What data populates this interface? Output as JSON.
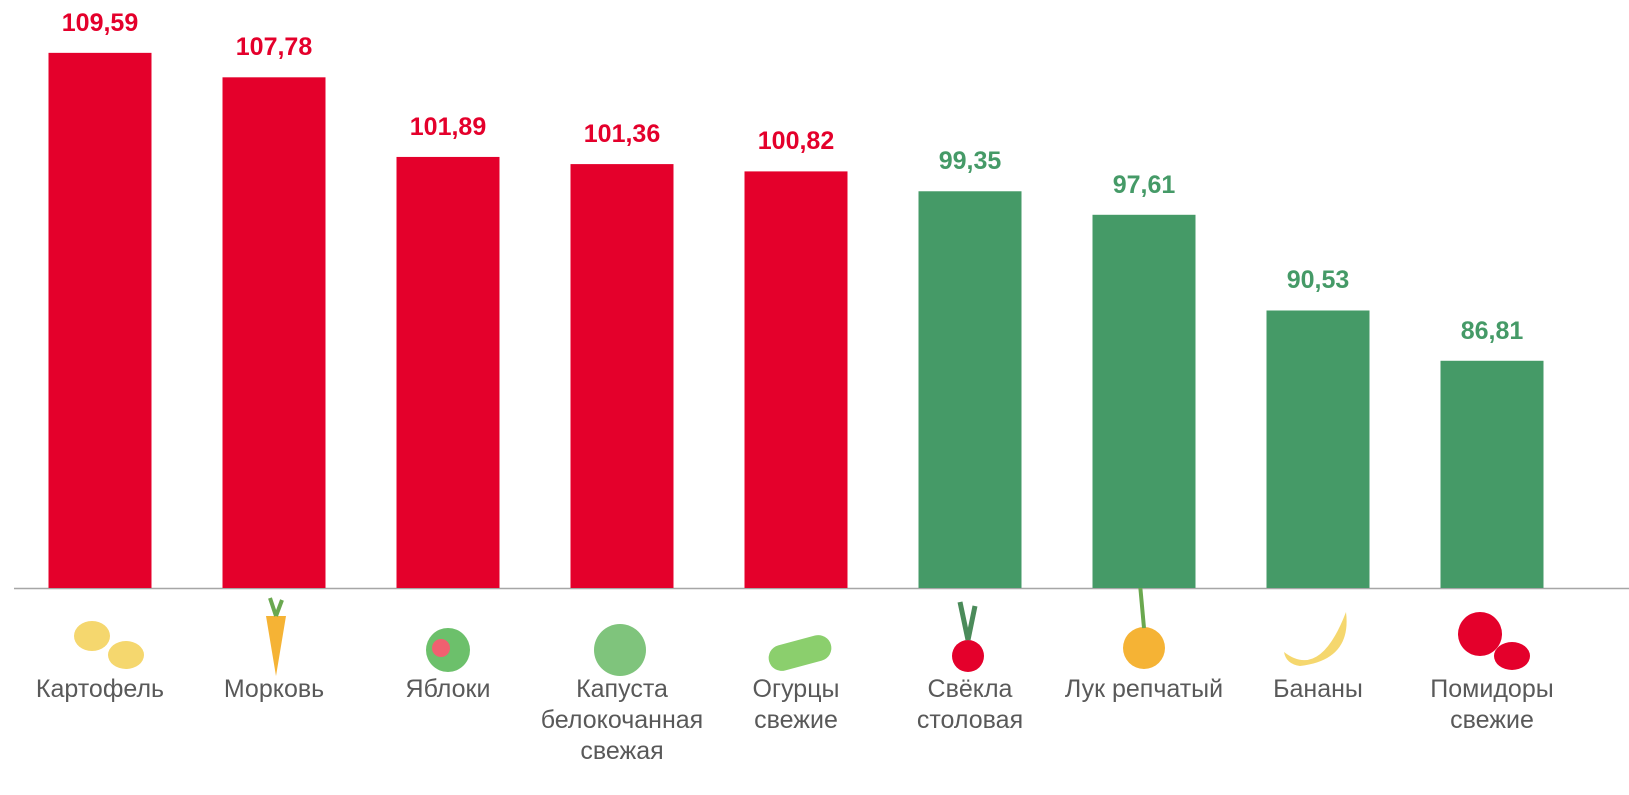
{
  "chart_data": {
    "type": "bar",
    "categories": [
      "Картофель",
      "Морковь",
      "Яблоки",
      "Капуста\nбелокочанная\nсвежая",
      "Огурцы\nсвежие",
      "Свёкла\nстоловая",
      "Лук репчатый",
      "Бананы",
      "Помидоры\nсвежие"
    ],
    "values": [
      109.59,
      107.78,
      101.89,
      101.36,
      100.82,
      99.35,
      97.61,
      90.53,
      86.81
    ],
    "value_labels": [
      "109,59",
      "107,78",
      "101,89",
      "101,36",
      "100,82",
      "99,35",
      "97,61",
      "90,53",
      "86,81"
    ],
    "colors": [
      "#e4002b",
      "#e4002b",
      "#e4002b",
      "#e4002b",
      "#e4002b",
      "#459a67",
      "#459a67",
      "#459a67",
      "#459a67"
    ],
    "ylim": [
      70,
      113.5
    ]
  }
}
